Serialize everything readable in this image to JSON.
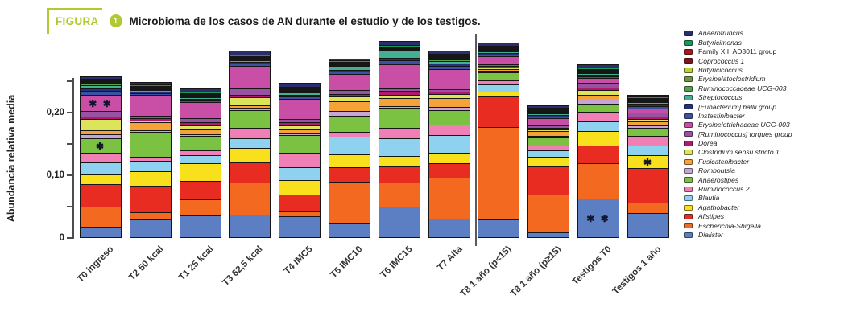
{
  "figure": {
    "label": "FIGURA",
    "number": "1",
    "title": "Microbioma de los casos de AN durante el estudio y de los testigos.",
    "accent_color": "#b3c931"
  },
  "chart_data": {
    "type": "bar",
    "subtype": "stacked",
    "ylabel": "Abundancia relativa media",
    "ylim": [
      0,
      0.32
    ],
    "yticks": [
      {
        "value": 0.0,
        "label": "0"
      },
      {
        "value": 0.05,
        "label": ""
      },
      {
        "value": 0.1,
        "label": "0,10"
      },
      {
        "value": 0.15,
        "label": ""
      },
      {
        "value": 0.2,
        "label": "0,20"
      },
      {
        "value": 0.25,
        "label": ""
      }
    ],
    "categories": [
      "T0 ingreso",
      "T2 50 kcal",
      "T1 25 kcal",
      "T3 62,5 kcal",
      "T4 IMC5",
      "T5 IMC10",
      "T6 IMC15",
      "T7 Alta",
      "T8 1 año (p<15)",
      "T8 1 año (p≥15)",
      "Testigos T0",
      "Testigos 1 año"
    ],
    "divider_between": [
      "T7 Alta",
      "T8 1 año (p<15)"
    ],
    "legend_position": "right",
    "legend_order_top_to_bottom": [
      "Anaerotruncus",
      "Butyricimonas",
      "Family XIII AD3011 group",
      "Coprococcus 1",
      "Butyricicoccus",
      "Erysipelatoclostridium",
      "Ruminococcaceae UCG-003",
      "Streptococcus",
      "[Eubacterium] hallii group",
      "Instestinibacter",
      "Erysipelotrichaceae UCG-003",
      "[Ruminococcus] torques group",
      "Dorea",
      "Clostridium sensu stricto 1",
      "Fusicatenibacter",
      "Romboutsia",
      "Anaerostipes",
      "Ruminococcus 2",
      "Blautia",
      "Agathobacter",
      "Alistipes",
      "Escherichia-Shigella",
      "Dialister"
    ],
    "series_bottom_to_top": [
      {
        "name": "Dialister",
        "color": "#5b7fc2",
        "italic": true,
        "values": [
          0.017,
          0.028,
          0.034,
          0.036,
          0.033,
          0.023,
          0.049,
          0.03,
          0.028,
          0.008,
          0.062,
          0.038
        ]
      },
      {
        "name": "Escherichia-Shigella",
        "color": "#f2691f",
        "italic": true,
        "values": [
          0.032,
          0.011,
          0.025,
          0.051,
          0.008,
          0.066,
          0.038,
          0.066,
          0.147,
          0.06,
          0.057,
          0.017
        ]
      },
      {
        "name": "Alistipes",
        "color": "#e92c22",
        "italic": true,
        "values": [
          0.036,
          0.042,
          0.03,
          0.032,
          0.027,
          0.023,
          0.025,
          0.023,
          0.049,
          0.045,
          0.028,
          0.055
        ]
      },
      {
        "name": "Agathobacter",
        "color": "#f9e01c",
        "italic": true,
        "values": [
          0.015,
          0.023,
          0.028,
          0.023,
          0.023,
          0.021,
          0.017,
          0.017,
          0.008,
          0.016,
          0.023,
          0.021
        ]
      },
      {
        "name": "Blautia",
        "color": "#8fd2f0",
        "italic": true,
        "values": [
          0.019,
          0.017,
          0.013,
          0.015,
          0.021,
          0.028,
          0.028,
          0.028,
          0.011,
          0.01,
          0.015,
          0.015
        ]
      },
      {
        "name": "Ruminococcus 2",
        "color": "#ef7fb4",
        "italic": true,
        "values": [
          0.015,
          0.006,
          0.008,
          0.017,
          0.023,
          0.008,
          0.017,
          0.017,
          0.006,
          0.008,
          0.015,
          0.015
        ]
      },
      {
        "name": "Anaerostipes",
        "color": "#7cc242",
        "italic": true,
        "values": [
          0.023,
          0.04,
          0.023,
          0.028,
          0.028,
          0.025,
          0.032,
          0.023,
          0.013,
          0.013,
          0.013,
          0.013
        ]
      },
      {
        "name": "Romboutsia",
        "color": "#c6a6d7",
        "italic": true,
        "values": [
          0.006,
          0.003,
          0.002,
          0.004,
          0.003,
          0.008,
          0.002,
          0.005,
          0.002,
          0.002,
          0.006,
          0.004
        ]
      },
      {
        "name": "Fusicatenibacter",
        "color": "#f5a339",
        "italic": true,
        "values": [
          0.006,
          0.013,
          0.008,
          0.004,
          0.006,
          0.015,
          0.013,
          0.014,
          0.002,
          0.008,
          0.008,
          0.006
        ]
      },
      {
        "name": "Clostridium sensu stricto 1",
        "color": "#dce45c",
        "italic": true,
        "values": [
          0.018,
          0.003,
          0.006,
          0.013,
          0.007,
          0.008,
          0.005,
          0.006,
          0.003,
          0.003,
          0.008,
          0.004
        ]
      },
      {
        "name": "Dorea",
        "color": "#b2186e",
        "italic": true,
        "values": [
          0.004,
          0.004,
          0.005,
          0.004,
          0.005,
          0.004,
          0.006,
          0.004,
          0.003,
          0.003,
          0.004,
          0.004
        ]
      },
      {
        "name": "[Ruminococcus] torques group",
        "color": "#9852a2",
        "italic": true,
        "values": [
          0.009,
          0.004,
          0.007,
          0.01,
          0.005,
          0.006,
          0.004,
          0.004,
          0.003,
          0.004,
          0.008,
          0.006
        ]
      },
      {
        "name": "Erysipelotrichaceae UCG-003",
        "color": "#c94fa6",
        "italic": true,
        "values": [
          0.026,
          0.033,
          0.026,
          0.036,
          0.032,
          0.026,
          0.038,
          0.032,
          0.013,
          0.012,
          0.008,
          0.006
        ]
      },
      {
        "name": "Instestinibacter",
        "color": "#3c51a3",
        "italic": true,
        "values": [
          0.007,
          0.003,
          0.003,
          0.004,
          0.004,
          0.004,
          0.006,
          0.005,
          0.003,
          0.003,
          0.003,
          0.004
        ]
      },
      {
        "name": "[Eubacterium] hallii group",
        "color": "#21327f",
        "italic": true,
        "values": [
          0.004,
          0.003,
          0.003,
          0.003,
          0.003,
          0.003,
          0.004,
          0.004,
          0.002,
          0.002,
          0.003,
          0.004
        ]
      },
      {
        "name": "Streptococcus",
        "color": "#43b091",
        "italic": true,
        "values": [
          0.005,
          0.003,
          0.003,
          0.003,
          0.004,
          0.007,
          0.011,
          0.004,
          0.002,
          0.002,
          0.003,
          0.003
        ]
      },
      {
        "name": "Ruminococcaceae UCG-003",
        "color": "#56a14c",
        "italic": true,
        "values": [
          0.002,
          0.001,
          0.001,
          0.001,
          0.001,
          0.001,
          0.001,
          0.002,
          0.001,
          0.001,
          0.001,
          0.001
        ]
      },
      {
        "name": "Erysipelatoclostridium",
        "color": "#739440",
        "italic": true,
        "values": [
          0.001,
          0.001,
          0.001,
          0.001,
          0.001,
          0.001,
          0.001,
          0.002,
          0.001,
          0.001,
          0.001,
          0.001
        ]
      },
      {
        "name": "Butyricicoccus",
        "color": "#bad32f",
        "italic": true,
        "values": [
          0.001,
          0.001,
          0.001,
          0.001,
          0.001,
          0.001,
          0.001,
          0.001,
          0.001,
          0.001,
          0.001,
          0.001
        ]
      },
      {
        "name": "Coprococcus 1",
        "color": "#821418",
        "italic": true,
        "values": [
          0.001,
          0.001,
          0.001,
          0.001,
          0.001,
          0.001,
          0.001,
          0.001,
          0.001,
          0.001,
          0.001,
          0.001
        ]
      },
      {
        "name": "Family XIII AD3011 group",
        "color": "#a8181d",
        "italic": false,
        "values": [
          0.001,
          0.001,
          0.001,
          0.001,
          0.001,
          0.001,
          0.001,
          0.001,
          0.001,
          0.001,
          0.001,
          0.001
        ]
      },
      {
        "name": "Butyricimonas",
        "color": "#17995a",
        "italic": true,
        "values": [
          0.003,
          0.003,
          0.003,
          0.003,
          0.003,
          0.003,
          0.003,
          0.003,
          0.002,
          0.002,
          0.003,
          0.003
        ]
      },
      {
        "name": "Anaerotruncus",
        "color": "#2b2d6e",
        "italic": true,
        "values": [
          0.004,
          0.004,
          0.005,
          0.006,
          0.006,
          0.003,
          0.006,
          0.005,
          0.005,
          0.004,
          0.005,
          0.003
        ]
      }
    ],
    "annotations": [
      {
        "category": "T0 ingreso",
        "series": "Erysipelotrichaceae UCG-003",
        "text": "✱ ✱"
      },
      {
        "category": "T0 ingreso",
        "series": "Anaerostipes",
        "text": "✱"
      },
      {
        "category": "Testigos T0",
        "series": "Dialister",
        "text": "✱ ✱"
      },
      {
        "category": "Testigos 1 año",
        "series": "Agathobacter",
        "text": "✱"
      }
    ]
  }
}
